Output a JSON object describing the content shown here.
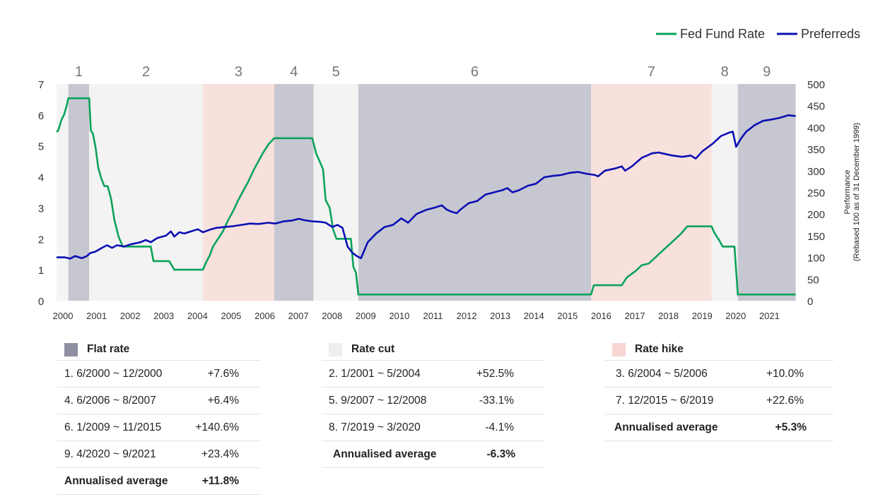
{
  "legend": {
    "fed_label": "Fed Fund Rate",
    "pref_label": "Preferreds"
  },
  "colors": {
    "fed": "#0aa35a",
    "pref": "#0b0fb3",
    "flat": "#8f8fa3",
    "cut": "#eeeeee",
    "hike": "#f6d5d2"
  },
  "chart_data": {
    "type": "line",
    "title": "",
    "y_left": {
      "min": 0,
      "max": 7,
      "ticks": [
        "0",
        "1",
        "2",
        "3",
        "4",
        "5",
        "6",
        "7"
      ]
    },
    "y_right": {
      "min": 0,
      "max": 500,
      "ticks": [
        "0",
        "50",
        "100",
        "150",
        "200",
        "250",
        "300",
        "350",
        "400",
        "450",
        "500"
      ],
      "label_line1": "Performance",
      "label_line2": "(Rebased 100 as of 31 December 1999)"
    },
    "x_ticks": [
      "2000",
      "2001",
      "2002",
      "2003",
      "2004",
      "2005",
      "2006",
      "2007",
      "2008",
      "2009",
      "2010",
      "2011",
      "2012",
      "2013",
      "2014",
      "2015",
      "2016",
      "2017",
      "2018",
      "2019",
      "2020",
      "2021"
    ],
    "phases": [
      {
        "label": "1",
        "type": "flat",
        "start": 2000.35,
        "end": 2000.97
      },
      {
        "label": "2",
        "type": "cut",
        "start": 2000.97,
        "end": 2004.35
      },
      {
        "label": "3",
        "type": "hike",
        "start": 2004.35,
        "end": 2006.47
      },
      {
        "label": "4",
        "type": "flat",
        "start": 2006.47,
        "end": 2007.64
      },
      {
        "label": "5",
        "type": "cut",
        "start": 2007.64,
        "end": 2008.97
      },
      {
        "label": "6",
        "type": "flat",
        "start": 2008.97,
        "end": 2015.89
      },
      {
        "label": "7",
        "type": "hike",
        "start": 2015.89,
        "end": 2019.47
      },
      {
        "label": "8",
        "type": "cut",
        "start": 2019.47,
        "end": 2020.25
      },
      {
        "label": "9",
        "type": "flat",
        "start": 2020.25,
        "end": 2021.97
      }
    ],
    "series": [
      {
        "name": "Fed Fund Rate",
        "axis": "left",
        "points": [
          [
            2000.0,
            5.45
          ],
          [
            2000.05,
            5.5
          ],
          [
            2000.15,
            5.85
          ],
          [
            2000.22,
            6.0
          ],
          [
            2000.3,
            6.3
          ],
          [
            2000.35,
            6.54
          ],
          [
            2000.97,
            6.54
          ],
          [
            2001.02,
            5.5
          ],
          [
            2001.08,
            5.4
          ],
          [
            2001.16,
            4.95
          ],
          [
            2001.24,
            4.3
          ],
          [
            2001.33,
            3.95
          ],
          [
            2001.42,
            3.7
          ],
          [
            2001.52,
            3.7
          ],
          [
            2001.62,
            3.3
          ],
          [
            2001.72,
            2.6
          ],
          [
            2001.85,
            2.05
          ],
          [
            2001.97,
            1.75
          ],
          [
            2002.8,
            1.75
          ],
          [
            2002.88,
            1.28
          ],
          [
            2003.35,
            1.28
          ],
          [
            2003.5,
            1.0
          ],
          [
            2004.35,
            1.0
          ],
          [
            2004.45,
            1.25
          ],
          [
            2004.55,
            1.45
          ],
          [
            2004.65,
            1.75
          ],
          [
            2004.8,
            2.0
          ],
          [
            2004.95,
            2.25
          ],
          [
            2005.1,
            2.6
          ],
          [
            2005.25,
            2.9
          ],
          [
            2005.4,
            3.25
          ],
          [
            2005.55,
            3.55
          ],
          [
            2005.7,
            3.85
          ],
          [
            2005.85,
            4.2
          ],
          [
            2006.0,
            4.5
          ],
          [
            2006.15,
            4.8
          ],
          [
            2006.3,
            5.05
          ],
          [
            2006.47,
            5.25
          ],
          [
            2007.6,
            5.25
          ],
          [
            2007.72,
            4.75
          ],
          [
            2007.82,
            4.5
          ],
          [
            2007.92,
            4.25
          ],
          [
            2008.0,
            3.25
          ],
          [
            2008.12,
            3.0
          ],
          [
            2008.22,
            2.3
          ],
          [
            2008.32,
            2.0
          ],
          [
            2008.75,
            2.0
          ],
          [
            2008.82,
            1.1
          ],
          [
            2008.9,
            0.9
          ],
          [
            2008.97,
            0.2
          ],
          [
            2015.89,
            0.2
          ],
          [
            2015.97,
            0.5
          ],
          [
            2016.8,
            0.5
          ],
          [
            2016.95,
            0.75
          ],
          [
            2017.2,
            0.95
          ],
          [
            2017.4,
            1.15
          ],
          [
            2017.6,
            1.2
          ],
          [
            2017.85,
            1.45
          ],
          [
            2018.05,
            1.65
          ],
          [
            2018.3,
            1.9
          ],
          [
            2018.55,
            2.15
          ],
          [
            2018.75,
            2.4
          ],
          [
            2018.9,
            2.4
          ],
          [
            2019.47,
            2.4
          ],
          [
            2019.55,
            2.2
          ],
          [
            2019.7,
            1.95
          ],
          [
            2019.8,
            1.75
          ],
          [
            2020.15,
            1.75
          ],
          [
            2020.25,
            0.2
          ],
          [
            2021.97,
            0.2
          ]
        ]
      },
      {
        "name": "Preferreds",
        "axis": "right",
        "points": [
          [
            2000.0,
            100
          ],
          [
            2000.25,
            100
          ],
          [
            2000.4,
            97
          ],
          [
            2000.55,
            103
          ],
          [
            2000.75,
            98
          ],
          [
            2000.9,
            103
          ],
          [
            2001.0,
            110
          ],
          [
            2001.15,
            113
          ],
          [
            2001.35,
            122
          ],
          [
            2001.5,
            128
          ],
          [
            2001.65,
            122
          ],
          [
            2001.8,
            128
          ],
          [
            2002.0,
            125
          ],
          [
            2002.2,
            130
          ],
          [
            2002.5,
            135
          ],
          [
            2002.65,
            140
          ],
          [
            2002.8,
            135
          ],
          [
            2003.0,
            145
          ],
          [
            2003.25,
            150
          ],
          [
            2003.4,
            160
          ],
          [
            2003.5,
            148
          ],
          [
            2003.65,
            158
          ],
          [
            2003.8,
            155
          ],
          [
            2004.0,
            160
          ],
          [
            2004.2,
            165
          ],
          [
            2004.35,
            158
          ],
          [
            2004.6,
            165
          ],
          [
            2004.75,
            168
          ],
          [
            2005.0,
            170
          ],
          [
            2005.25,
            172
          ],
          [
            2005.5,
            175
          ],
          [
            2005.75,
            178
          ],
          [
            2006.0,
            177
          ],
          [
            2006.3,
            180
          ],
          [
            2006.5,
            178
          ],
          [
            2006.75,
            183
          ],
          [
            2007.0,
            185
          ],
          [
            2007.2,
            189
          ],
          [
            2007.35,
            186
          ],
          [
            2007.6,
            183
          ],
          [
            2007.85,
            182
          ],
          [
            2008.0,
            180
          ],
          [
            2008.2,
            170
          ],
          [
            2008.35,
            175
          ],
          [
            2008.5,
            168
          ],
          [
            2008.65,
            125
          ],
          [
            2008.8,
            110
          ],
          [
            2008.95,
            102
          ],
          [
            2009.05,
            98
          ],
          [
            2009.25,
            135
          ],
          [
            2009.5,
            155
          ],
          [
            2009.75,
            170
          ],
          [
            2010.0,
            175
          ],
          [
            2010.25,
            190
          ],
          [
            2010.45,
            180
          ],
          [
            2010.7,
            200
          ],
          [
            2011.0,
            210
          ],
          [
            2011.25,
            215
          ],
          [
            2011.45,
            220
          ],
          [
            2011.6,
            210
          ],
          [
            2011.75,
            205
          ],
          [
            2011.9,
            202
          ],
          [
            2012.0,
            210
          ],
          [
            2012.25,
            225
          ],
          [
            2012.5,
            230
          ],
          [
            2012.75,
            245
          ],
          [
            2013.0,
            250
          ],
          [
            2013.25,
            255
          ],
          [
            2013.4,
            260
          ],
          [
            2013.55,
            250
          ],
          [
            2013.75,
            255
          ],
          [
            2014.0,
            265
          ],
          [
            2014.25,
            270
          ],
          [
            2014.5,
            285
          ],
          [
            2014.75,
            288
          ],
          [
            2015.0,
            290
          ],
          [
            2015.25,
            295
          ],
          [
            2015.5,
            297
          ],
          [
            2015.75,
            293
          ],
          [
            2016.0,
            290
          ],
          [
            2016.1,
            287
          ],
          [
            2016.3,
            300
          ],
          [
            2016.6,
            305
          ],
          [
            2016.8,
            310
          ],
          [
            2016.9,
            300
          ],
          [
            2017.1,
            310
          ],
          [
            2017.4,
            330
          ],
          [
            2017.7,
            340
          ],
          [
            2017.9,
            342
          ],
          [
            2018.0,
            340
          ],
          [
            2018.3,
            335
          ],
          [
            2018.6,
            332
          ],
          [
            2018.85,
            335
          ],
          [
            2019.0,
            328
          ],
          [
            2019.2,
            345
          ],
          [
            2019.5,
            362
          ],
          [
            2019.75,
            380
          ],
          [
            2020.0,
            388
          ],
          [
            2020.1,
            390
          ],
          [
            2020.2,
            355
          ],
          [
            2020.35,
            375
          ],
          [
            2020.5,
            390
          ],
          [
            2020.75,
            405
          ],
          [
            2021.0,
            415
          ],
          [
            2021.25,
            418
          ],
          [
            2021.5,
            422
          ],
          [
            2021.75,
            428
          ],
          [
            2021.97,
            426
          ]
        ]
      }
    ]
  },
  "tables": {
    "flat": {
      "title": "Flat rate",
      "rows": [
        {
          "label": "1. 6/2000 ~ 12/2000",
          "value": "+7.6%"
        },
        {
          "label": "4. 6/2006 ~ 8/2007",
          "value": "+6.4%"
        },
        {
          "label": "6. 1/2009 ~ 11/2015",
          "value": "+140.6%"
        },
        {
          "label": "9. 4/2020 ~ 9/2021",
          "value": "+23.4%"
        }
      ],
      "avg_label": "Annualised average",
      "avg_value": "+11.8%"
    },
    "cut": {
      "title": "Rate cut",
      "rows": [
        {
          "label": "2. 1/2001 ~ 5/2004",
          "value": "+52.5%"
        },
        {
          "label": "5. 9/2007 ~ 12/2008",
          "value": "-33.1%"
        },
        {
          "label": "8. 7/2019 ~ 3/2020",
          "value": "-4.1%"
        }
      ],
      "avg_label": "Annualised average",
      "avg_value": "-6.3%"
    },
    "hike": {
      "title": "Rate hike",
      "rows": [
        {
          "label": "3. 6/2004 ~ 5/2006",
          "value": "+10.0%"
        },
        {
          "label": "7. 12/2015 ~ 6/2019",
          "value": "+22.6%"
        }
      ],
      "avg_label": "Annualised average",
      "avg_value": "+5.3%"
    }
  }
}
